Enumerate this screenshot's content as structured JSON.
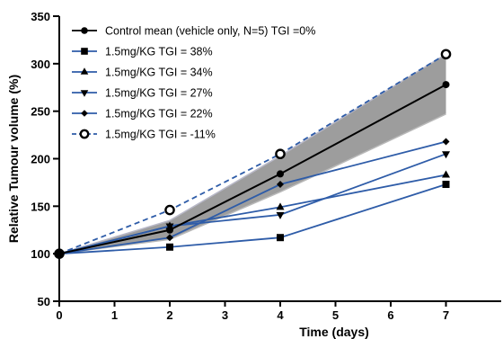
{
  "chart_data": {
    "type": "line",
    "xlabel": "Time (days)",
    "ylabel": "Relative Tumour volume (%)",
    "xlim": [
      0,
      8
    ],
    "ylim": [
      50,
      350
    ],
    "x_ticks": [
      0,
      1,
      2,
      3,
      4,
      5,
      6,
      7
    ],
    "y_ticks": [
      50,
      100,
      150,
      200,
      250,
      300,
      350
    ],
    "grid": false,
    "legend_position": "top-left",
    "band": {
      "series": "Control mean (vehicle only, N=5) TGI =0%",
      "x": [
        0,
        2,
        4,
        7
      ],
      "lower": [
        100,
        115,
        165,
        247
      ],
      "upper": [
        100,
        135,
        203,
        310
      ],
      "color": "#8c8c8c"
    },
    "series": [
      {
        "name": "Control mean (vehicle only, N=5) TGI =0%",
        "marker": "circle",
        "dash": false,
        "color": "#000000",
        "x": [
          0,
          2,
          4,
          7
        ],
        "y": [
          100,
          125,
          184,
          278
        ]
      },
      {
        "name": "1.5mg/KG TGI = 38%",
        "marker": "square",
        "dash": false,
        "color": "#2e5ca8",
        "x": [
          0,
          2,
          4,
          7
        ],
        "y": [
          100,
          107,
          117,
          173
        ]
      },
      {
        "name": "1.5mg/KG TGI = 34%",
        "marker": "triangle-up",
        "dash": false,
        "color": "#2e5ca8",
        "x": [
          0,
          2,
          4,
          7
        ],
        "y": [
          100,
          129,
          149,
          183
        ]
      },
      {
        "name": "1.5mg/KG TGI = 27%",
        "marker": "triangle-down",
        "dash": false,
        "color": "#2e5ca8",
        "x": [
          0,
          2,
          4,
          7
        ],
        "y": [
          100,
          129,
          141,
          205
        ]
      },
      {
        "name": "1.5mg/KG TGI = 22%",
        "marker": "diamond",
        "dash": false,
        "color": "#2e5ca8",
        "x": [
          0,
          2,
          4,
          7
        ],
        "y": [
          100,
          117,
          173,
          218
        ]
      },
      {
        "name": "1.5mg/KG TGI = -11%",
        "marker": "open-circle",
        "dash": true,
        "color": "#2e5ca8",
        "x": [
          0,
          2,
          4,
          7
        ],
        "y": [
          100,
          146,
          205,
          310
        ]
      }
    ]
  }
}
